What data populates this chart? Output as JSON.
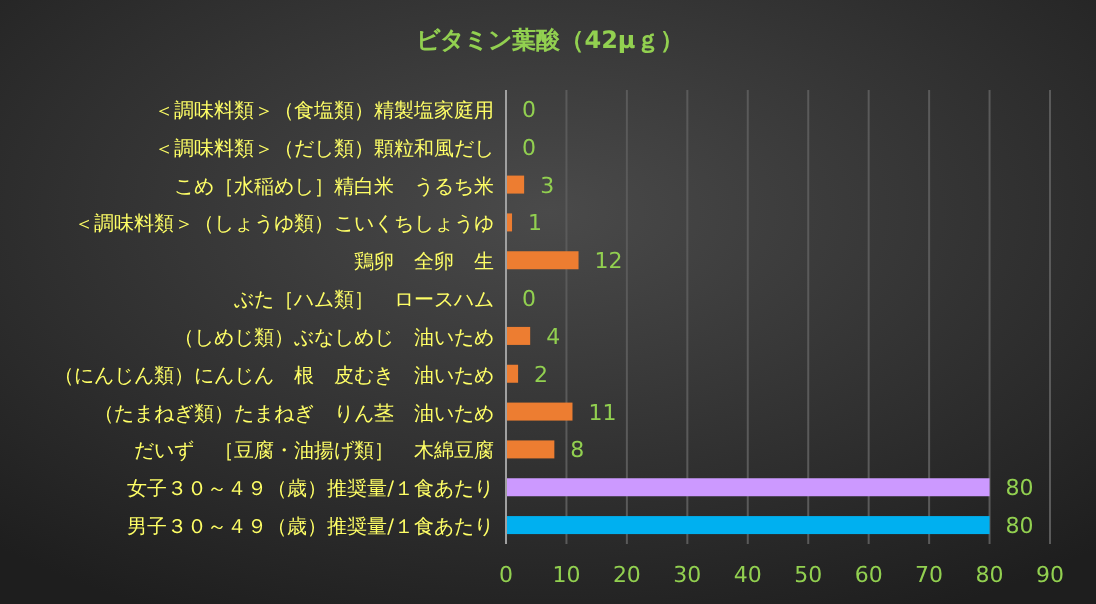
{
  "chart_data": {
    "type": "bar",
    "orientation": "horizontal",
    "title": "ビタミン葉酸（42μｇ）",
    "categories": [
      "＜調味料類＞（食塩類）精製塩家庭用",
      "＜調味料類＞（だし類）顆粒和風だし",
      "こめ［水稲めし］精白米　うるち米",
      "＜調味料類＞（しょうゆ類）こいくちしょうゆ",
      "鶏卵　全卵　生",
      "ぶた［ハム類］　ロースハム",
      "（しめじ類）ぶなしめじ　油いため",
      "（にんじん類）にんじん　根　皮むき　油いため",
      "（たまねぎ類）たまねぎ　りん茎　油いため",
      "だいず　［豆腐・油揚げ類］　木綿豆腐",
      "女子３０～４９（歳）推奨量/１食あたり",
      "男子３０～４９（歳）推奨量/１食あたり"
    ],
    "values": [
      0,
      0,
      3,
      1,
      12,
      0,
      4,
      2,
      11,
      8,
      80,
      80
    ],
    "colors": [
      "#ed7d31",
      "#ed7d31",
      "#ed7d31",
      "#ed7d31",
      "#ed7d31",
      "#ed7d31",
      "#ed7d31",
      "#ed7d31",
      "#ed7d31",
      "#ed7d31",
      "#cc99ff",
      "#00b0f0"
    ],
    "xlim": [
      0,
      90
    ],
    "xticks": [
      0,
      10,
      20,
      30,
      40,
      50,
      60,
      70,
      80,
      90
    ],
    "grid": "x",
    "data_labels": true
  }
}
